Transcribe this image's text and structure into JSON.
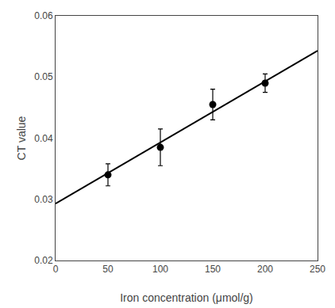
{
  "chart_data": {
    "type": "scatter",
    "xlabel": "Iron concentration (μmol/g)",
    "ylabel": "CT value",
    "series": [
      {
        "type": "line",
        "x": [
          0,
          250
        ],
        "values": [
          0.0293,
          0.0543
        ],
        "color": "#000000",
        "line_style": "solid"
      },
      {
        "type": "scatter",
        "x": [
          50,
          100,
          150,
          200
        ],
        "values": [
          0.034,
          0.0385,
          0.0455,
          0.049
        ],
        "y_err": [
          0.0018,
          0.003,
          0.0025,
          0.0015
        ],
        "color": "#000000",
        "marker": "circle"
      }
    ],
    "xlim": [
      0,
      250
    ],
    "ylim": [
      0.02,
      0.06
    ],
    "xticks": [
      0,
      50,
      100,
      150,
      200,
      250
    ],
    "yticks": [
      0.02,
      0.03,
      0.04,
      0.05,
      0.06
    ],
    "grid": false
  }
}
